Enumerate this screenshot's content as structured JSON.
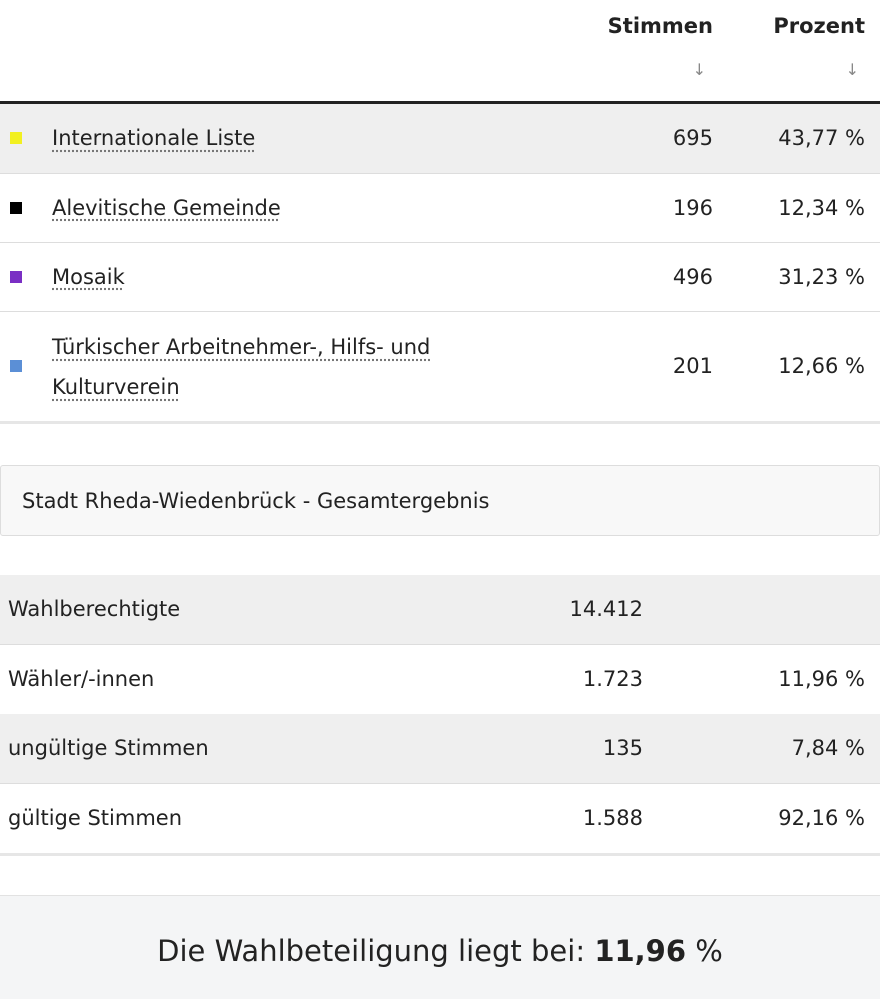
{
  "party_table": {
    "columns": [
      {
        "label": "Stimmen",
        "sort_icon": "↓"
      },
      {
        "label": "Prozent",
        "sort_icon": "↓"
      }
    ],
    "rows": [
      {
        "color": "#f2f020",
        "name": "Internationale Liste",
        "votes": "695",
        "percent": "43,77 %"
      },
      {
        "color": "#000000",
        "name": "Alevitische Gemeinde",
        "votes": "196",
        "percent": "12,34 %"
      },
      {
        "color": "#7a2fc4",
        "name": "Mosaik",
        "votes": "496",
        "percent": "31,23 %"
      },
      {
        "color": "#5b8fd6",
        "name": "Türkischer Arbeitnehmer-, Hilfs- und Kulturverein",
        "votes": "201",
        "percent": "12,66 %"
      }
    ]
  },
  "summary": {
    "title": "Stadt Rheda-Wiedenbrück - Gesamtergebnis",
    "rows": [
      {
        "label": "Wahlberechtigte",
        "count": "14.412",
        "percent": null
      },
      {
        "label": "Wähler/-innen",
        "count": "1.723",
        "percent": "11,96 %"
      },
      {
        "label": "ungültige Stimmen",
        "count": "135",
        "percent": "7,84 %"
      },
      {
        "label": "gültige Stimmen",
        "count": "1.588",
        "percent": "92,16 %"
      }
    ]
  },
  "turnout": {
    "text": "Die Wahlbeteiligung liegt bei:",
    "value": "11,96",
    "unit": "%"
  }
}
